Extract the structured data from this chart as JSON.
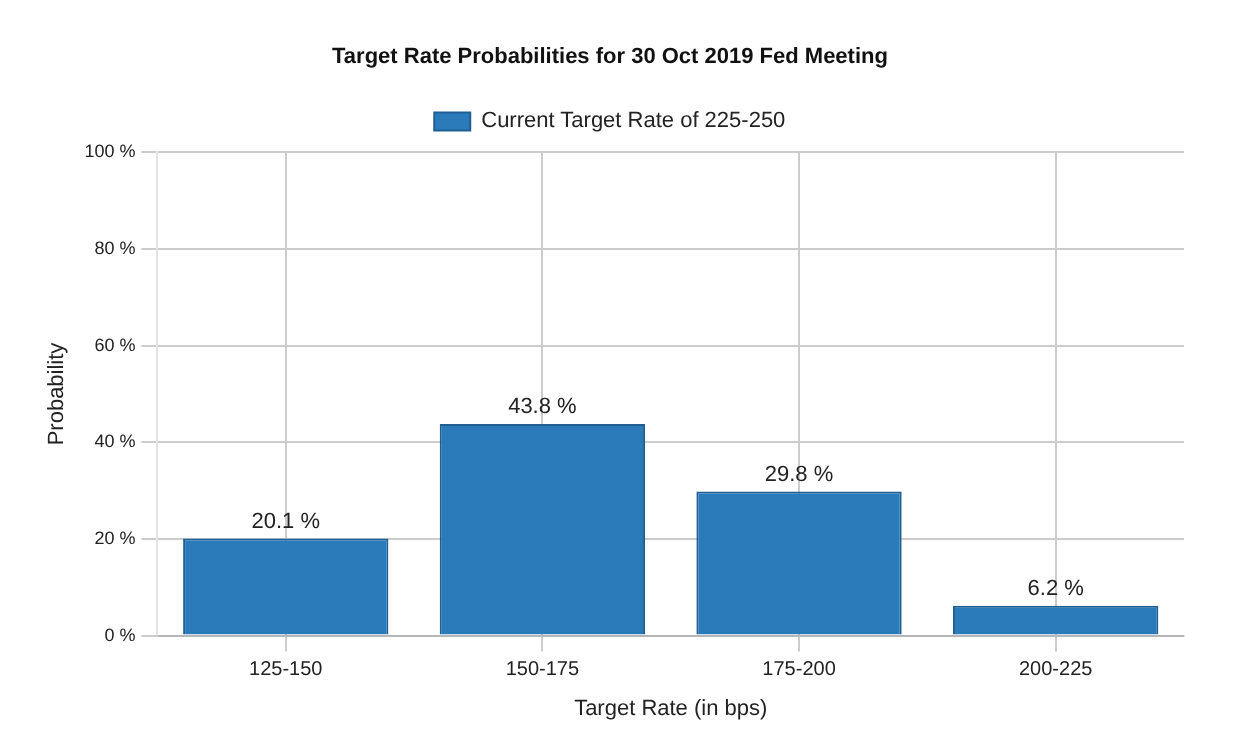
{
  "chart_data": {
    "type": "bar",
    "title": "Target Rate Probabilities for 30 Oct 2019 Fed Meeting",
    "xlabel": "Target Rate (in bps)",
    "ylabel": "Probability",
    "categories": [
      "125-150",
      "150-175",
      "175-200",
      "200-225"
    ],
    "series": [
      {
        "name": "Current Target Rate of 225-250",
        "color": "#2b7bba",
        "values": [
          20.1,
          43.8,
          29.8,
          6.2
        ],
        "value_labels": [
          "20.1 %",
          "43.8 %",
          "29.8 %",
          "6.2 %"
        ]
      }
    ],
    "ylim": [
      0,
      100
    ],
    "yticks": [
      {
        "value": 0,
        "label": "0 %"
      },
      {
        "value": 20,
        "label": "20 %"
      },
      {
        "value": 40,
        "label": "40 %"
      },
      {
        "value": 60,
        "label": "60 %"
      },
      {
        "value": 80,
        "label": "80 %"
      },
      {
        "value": 100,
        "label": "100 %"
      }
    ],
    "grid": true,
    "legend": "top"
  }
}
